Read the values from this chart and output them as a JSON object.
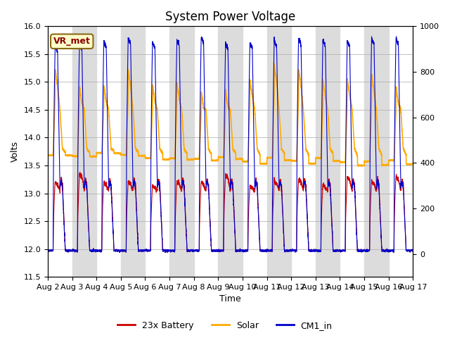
{
  "title": "System Power Voltage",
  "xlabel": "Time",
  "ylabel": "Volts",
  "ylim_left": [
    11.5,
    16.0
  ],
  "ylim_right": [
    -100,
    1000
  ],
  "xlim": [
    0,
    15
  ],
  "x_tick_labels": [
    "Aug 2",
    "Aug 3",
    "Aug 4",
    "Aug 5",
    "Aug 6",
    "Aug 7",
    "Aug 8",
    "Aug 9",
    "Aug 10",
    "Aug 11",
    "Aug 12",
    "Aug 13",
    "Aug 14",
    "Aug 15",
    "Aug 16",
    "Aug 17"
  ],
  "x_tick_positions": [
    0,
    1,
    2,
    3,
    4,
    5,
    6,
    7,
    8,
    9,
    10,
    11,
    12,
    13,
    14,
    15
  ],
  "vr_met_label": "VR_met",
  "legend_labels": [
    "23x Battery",
    "Solar",
    "CM1_in"
  ],
  "line_colors": [
    "#cc0000",
    "#ffaa00",
    "#0000cc"
  ],
  "background_color": "#ffffff",
  "band_color": "#dcdcdc",
  "title_fontsize": 12,
  "axis_fontsize": 9,
  "tick_fontsize": 8,
  "legend_fontsize": 9
}
